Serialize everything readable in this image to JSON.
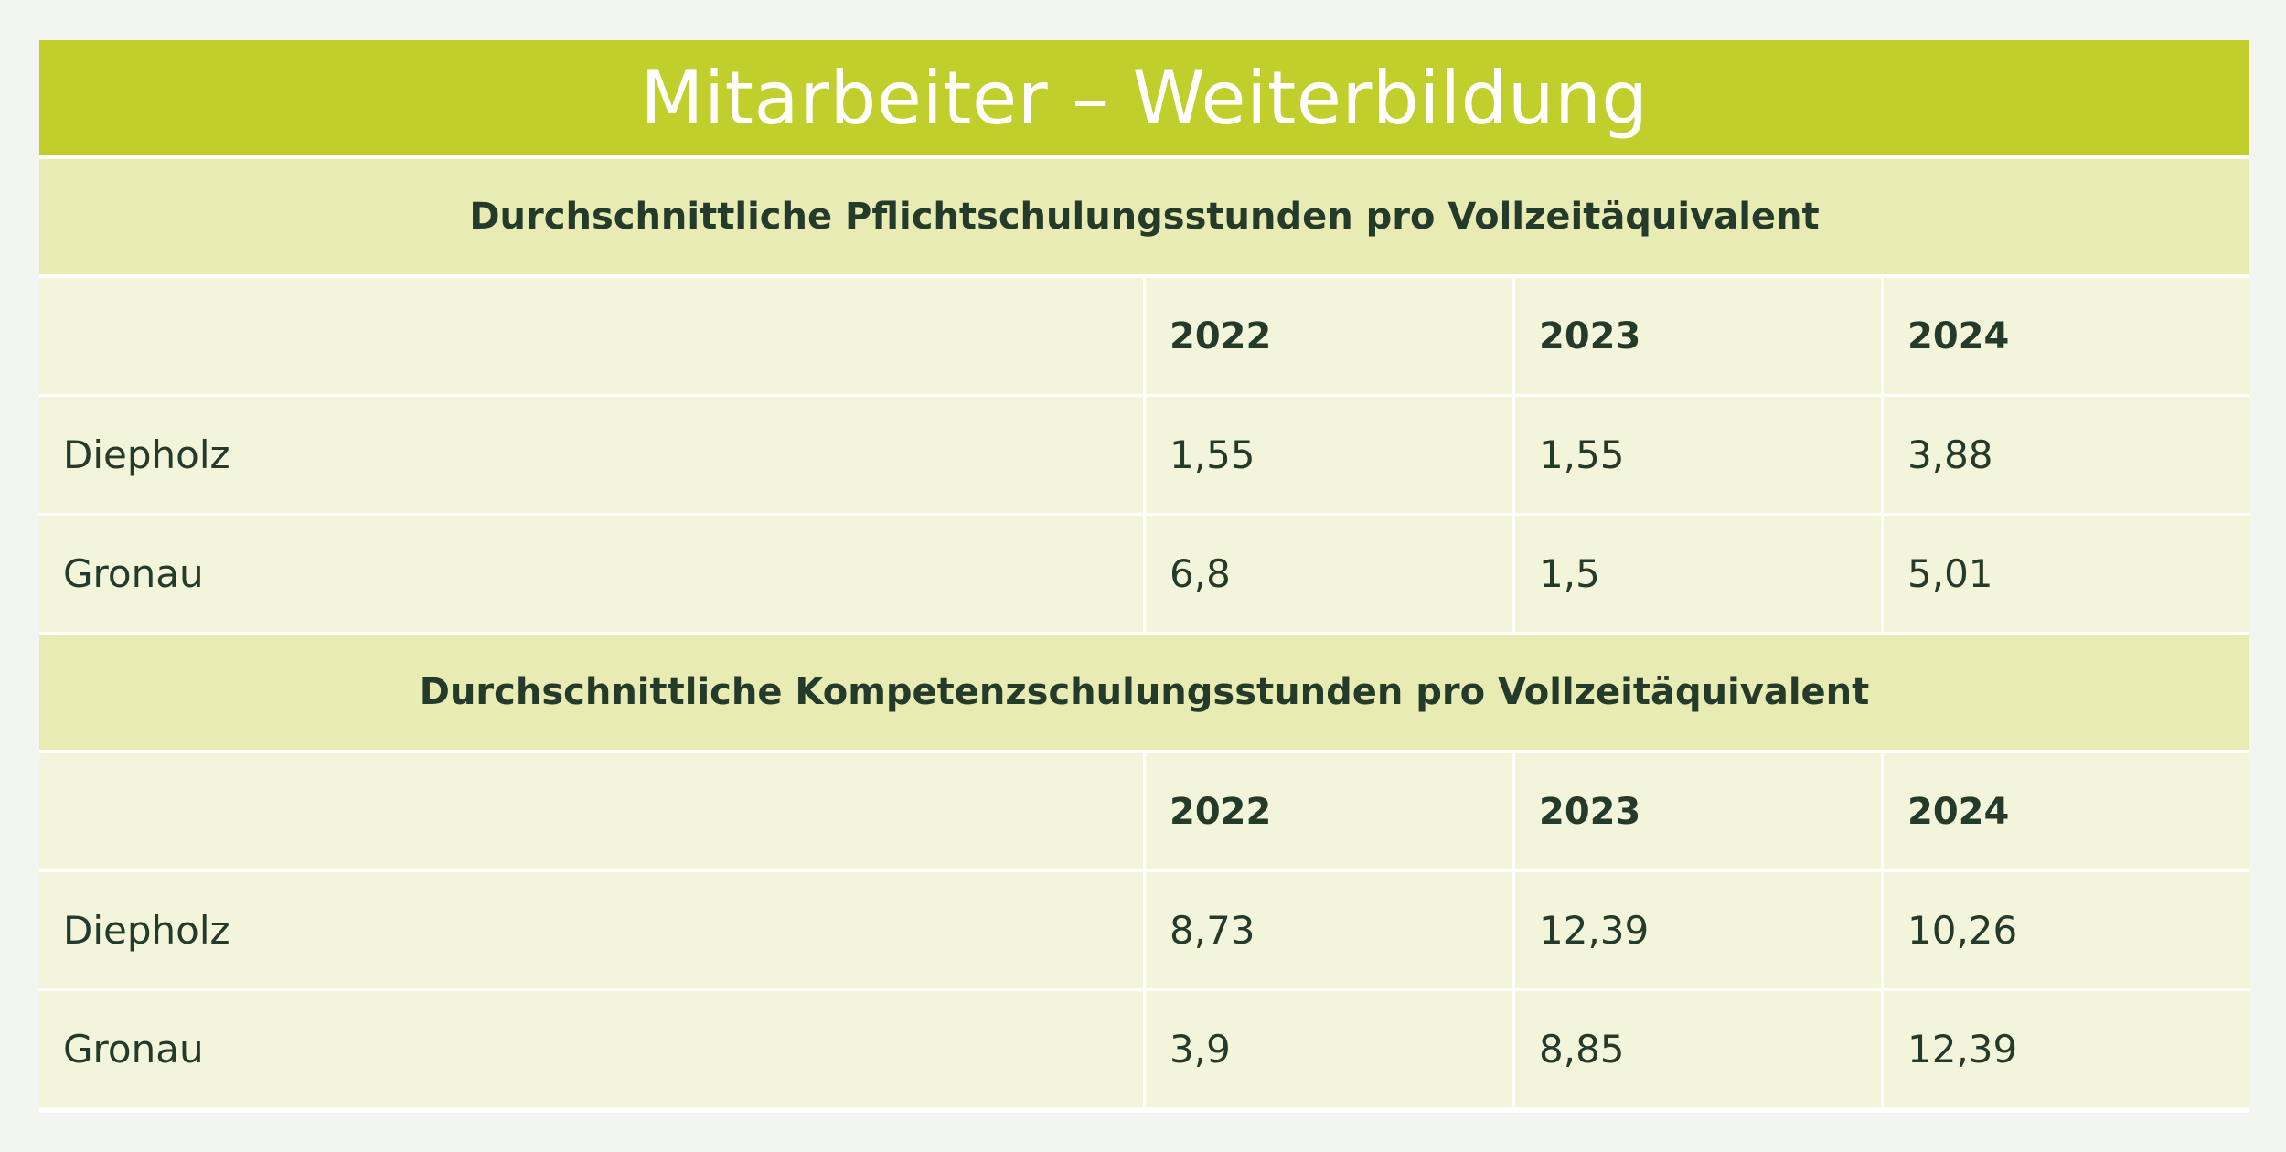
{
  "title": "Mitarbeiter – Weiterbildung",
  "sections": [
    {
      "heading": "Durchschnittliche Pflichtschulungsstunden pro Vollzeitäquivalent",
      "header": [
        "",
        "2022",
        "2023",
        "2024"
      ],
      "rows": [
        [
          "Diepholz",
          "1,55",
          "1,55",
          "3,88"
        ],
        [
          "Gronau",
          "6,8",
          "1,5",
          "5,01"
        ]
      ]
    },
    {
      "heading": "Durchschnittliche Kompetenzschulungsstunden pro Vollzeitäquivalent",
      "header": [
        "",
        "2022",
        "2023",
        "2024"
      ],
      "rows": [
        [
          "Diepholz",
          "8,73",
          "12,39",
          "10,26"
        ],
        [
          "Gronau",
          "3,9",
          "8,85",
          "12,39"
        ]
      ]
    }
  ],
  "colors": {
    "title_bg": "#c0cf2c",
    "section_bg": "#e8ebb2",
    "cell_bg": "#f2f5da",
    "text": "#243a2a"
  }
}
